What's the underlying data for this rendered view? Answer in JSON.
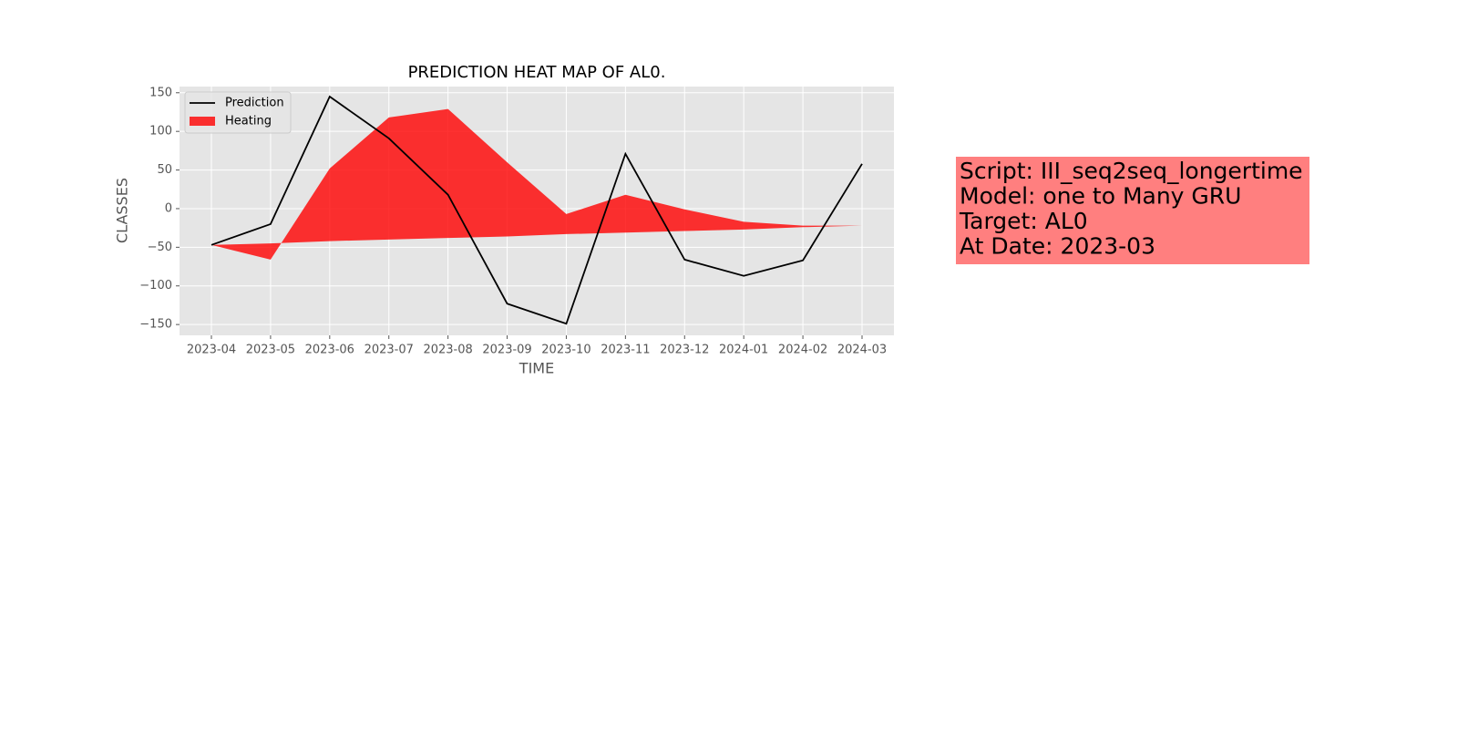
{
  "chart_data": {
    "type": "line",
    "title": "PREDICTION HEAT MAP OF AL0.",
    "x_label": "TIME",
    "y_label": "CLASSES",
    "categories": [
      "2023-04",
      "2023-05",
      "2023-06",
      "2023-07",
      "2023-08",
      "2023-09",
      "2023-10",
      "2023-11",
      "2023-12",
      "2024-01",
      "2024-02",
      "2024-03"
    ],
    "series": [
      {
        "name": "Prediction",
        "type": "line",
        "color": "#000000",
        "values": [
          -47,
          -20,
          145,
          91,
          18,
          -123,
          -149,
          71,
          -66,
          -87,
          -67,
          58
        ]
      },
      {
        "name": "Heating",
        "type": "area",
        "color": "#ff0000",
        "values": [
          -47,
          -66,
          52,
          118,
          129,
          60,
          -7,
          18,
          -1,
          -17,
          -22,
          -22
        ],
        "base": [
          -47,
          -45,
          -42,
          -40,
          -38,
          -36,
          -33,
          -31,
          -29,
          -27,
          -24,
          -22
        ]
      }
    ],
    "ylim": [
      -164,
      158
    ],
    "yticks": [
      {
        "value": -150,
        "label": "−150"
      },
      {
        "value": -100,
        "label": "−100"
      },
      {
        "value": -50,
        "label": "−50"
      },
      0,
      50,
      100,
      150
    ],
    "grid": true,
    "legend": "upper left",
    "annotation": {
      "lines": [
        "Script: III_seq2seq_longertime",
        "Model: one to Many GRU",
        "Target: AL0",
        "At Date: 2023-03"
      ],
      "color": "#ff7f7f"
    }
  }
}
